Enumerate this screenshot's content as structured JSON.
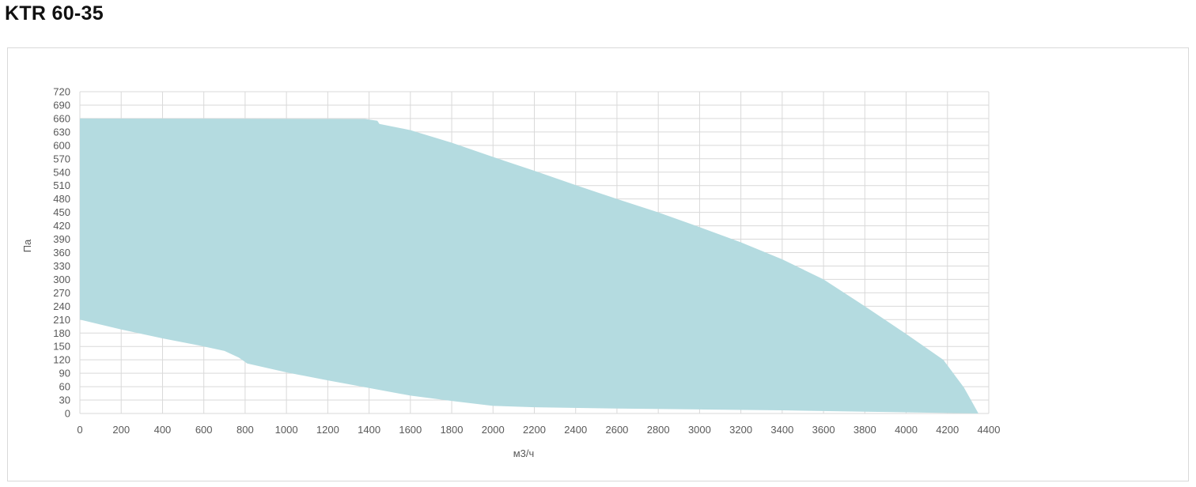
{
  "header": {
    "title": "KTR 60-35"
  },
  "chart_data": {
    "type": "area",
    "title": "KTR 60-35",
    "xlabel": "м3/ч",
    "ylabel": "Па",
    "xlim": [
      0,
      4400
    ],
    "ylim": [
      0,
      720
    ],
    "x_ticks": [
      0,
      200,
      400,
      600,
      800,
      1000,
      1200,
      1400,
      1600,
      1800,
      2000,
      2200,
      2400,
      2600,
      2800,
      3000,
      3200,
      3400,
      3600,
      3800,
      4000,
      4200,
      4400
    ],
    "y_ticks": [
      0,
      30,
      60,
      90,
      120,
      150,
      180,
      210,
      240,
      270,
      300,
      330,
      360,
      390,
      420,
      450,
      480,
      510,
      540,
      570,
      600,
      630,
      660,
      690,
      720
    ],
    "grid": true,
    "fill_color": "#b4dbe0",
    "upper_boundary": [
      {
        "x": 0,
        "y": 660
      },
      {
        "x": 1380,
        "y": 659
      },
      {
        "x": 1440,
        "y": 655
      },
      {
        "x": 1450,
        "y": 648
      },
      {
        "x": 1600,
        "y": 634
      },
      {
        "x": 1800,
        "y": 606
      },
      {
        "x": 2000,
        "y": 574
      },
      {
        "x": 2200,
        "y": 543
      },
      {
        "x": 2400,
        "y": 511
      },
      {
        "x": 2600,
        "y": 480
      },
      {
        "x": 2800,
        "y": 450
      },
      {
        "x": 3000,
        "y": 417
      },
      {
        "x": 3200,
        "y": 383
      },
      {
        "x": 3400,
        "y": 345
      },
      {
        "x": 3600,
        "y": 300
      },
      {
        "x": 3800,
        "y": 240
      },
      {
        "x": 4000,
        "y": 178
      },
      {
        "x": 4180,
        "y": 120
      },
      {
        "x": 4280,
        "y": 58
      },
      {
        "x": 4320,
        "y": 25
      },
      {
        "x": 4350,
        "y": 0
      }
    ],
    "lower_boundary": [
      {
        "x": 0,
        "y": 210
      },
      {
        "x": 200,
        "y": 188
      },
      {
        "x": 400,
        "y": 168
      },
      {
        "x": 600,
        "y": 150
      },
      {
        "x": 700,
        "y": 140
      },
      {
        "x": 770,
        "y": 125
      },
      {
        "x": 810,
        "y": 112
      },
      {
        "x": 1000,
        "y": 92
      },
      {
        "x": 1200,
        "y": 74
      },
      {
        "x": 1400,
        "y": 57
      },
      {
        "x": 1600,
        "y": 40
      },
      {
        "x": 1800,
        "y": 28
      },
      {
        "x": 2000,
        "y": 17
      },
      {
        "x": 2200,
        "y": 14
      },
      {
        "x": 2600,
        "y": 11
      },
      {
        "x": 3000,
        "y": 9
      },
      {
        "x": 3400,
        "y": 7
      },
      {
        "x": 3800,
        "y": 4
      },
      {
        "x": 4200,
        "y": 1
      },
      {
        "x": 4350,
        "y": 0
      }
    ]
  }
}
